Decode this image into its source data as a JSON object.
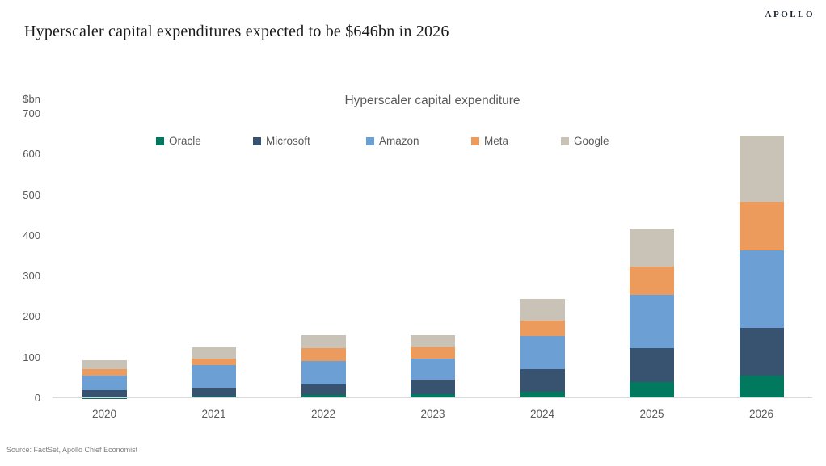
{
  "header": {
    "title": "Hyperscaler capital expenditures expected to be $646bn in 2026",
    "logo": "APOLLO"
  },
  "footer": {
    "source": "Source: FactSet, Apollo Chief Economist"
  },
  "chart_data": {
    "type": "bar",
    "stacked": true,
    "title": "Hyperscaler capital expenditure",
    "unit_label": "$bn",
    "xlabel": "",
    "ylabel": "$bn",
    "ylim": [
      0,
      700
    ],
    "yticks": [
      0,
      100,
      200,
      300,
      400,
      500,
      600,
      700
    ],
    "grid": false,
    "legend_position": "top",
    "categories": [
      "2020",
      "2021",
      "2022",
      "2023",
      "2024",
      "2025",
      "2026"
    ],
    "series": [
      {
        "name": "Oracle",
        "color": "#00795f",
        "values": [
          1,
          4,
          8,
          9,
          15,
          40,
          56
        ]
      },
      {
        "name": "Microsoft",
        "color": "#38536f",
        "values": [
          19,
          22,
          26,
          36,
          56,
          83,
          117
        ]
      },
      {
        "name": "Amazon",
        "color": "#6c9fd4",
        "values": [
          35,
          55,
          57,
          52,
          82,
          132,
          190
        ]
      },
      {
        "name": "Meta",
        "color": "#ec9b5d",
        "values": [
          16,
          17,
          32,
          28,
          38,
          70,
          120
        ]
      },
      {
        "name": "Google",
        "color": "#c8c2b7",
        "values": [
          22,
          28,
          32,
          31,
          54,
          93,
          163
        ]
      }
    ],
    "totals": [
      93,
      126,
      155,
      156,
      245,
      418,
      646
    ]
  }
}
